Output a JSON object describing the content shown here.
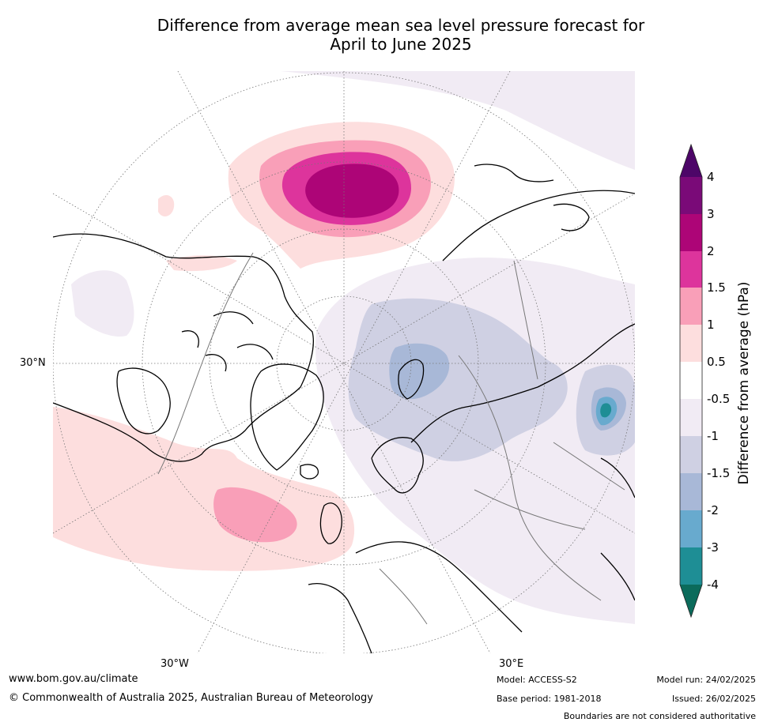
{
  "title_line1": "Difference from average mean sea level pressure forecast for",
  "title_line2": "April to June 2025",
  "axis_labels": {
    "lat_30n": "30°N",
    "lon_30w": "30°W",
    "lon_30e": "30°E"
  },
  "colorbar": {
    "label": "Difference from average (hPa)",
    "ticks": [
      "4",
      "3",
      "2",
      "1.5",
      "1",
      "0.5",
      "-0.5",
      "-1",
      "-1.5",
      "-2",
      "-3",
      "-4"
    ],
    "colors": {
      "gt4": "#4d0668",
      "3_4": "#7a0a78",
      "2_3": "#ad0577",
      "1.5_2": "#dd349c",
      "1_1.5": "#f99fb8",
      "0.5_1": "#fddede",
      "neutral": "#ffffff",
      "m1_m0.5": "#f1ebf4",
      "m1.5_m1": "#cfd0e3",
      "m2_m1.5": "#a8b8d7",
      "m3_m2": "#68aace",
      "m4_m3": "#1e8e95",
      "lt_m4": "#0b6b5b"
    }
  },
  "footer": {
    "website": "www.bom.gov.au/climate",
    "copyright": "© Commonwealth of Australia 2025, Australian Bureau of Meteorology",
    "model": "Model: ACCESS-S2",
    "base_period": "Base period: 1981-2018",
    "model_run": "Model run: 24/02/2025",
    "issued": "Issued: 26/02/2025",
    "disclaimer": "Boundaries are not considered authoritative"
  }
}
